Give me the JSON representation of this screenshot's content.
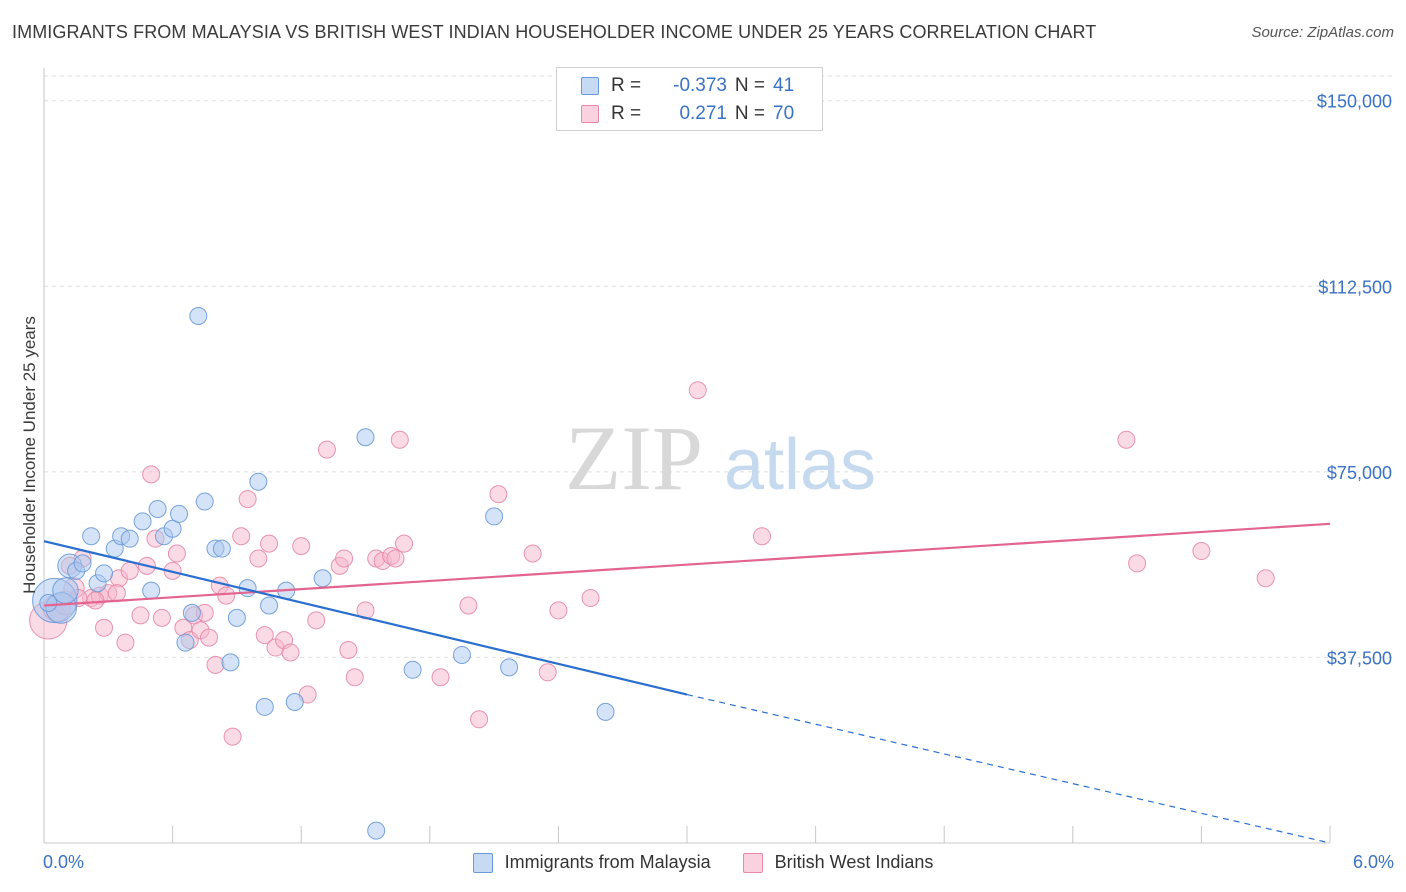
{
  "header": {
    "title": "IMMIGRANTS FROM MALAYSIA VS BRITISH WEST INDIAN HOUSEHOLDER INCOME UNDER 25 YEARS CORRELATION CHART",
    "source": "Source: ZipAtlas.com"
  },
  "legend": {
    "rows": [
      {
        "r_label": "R =",
        "r_value": "-0.373",
        "n_label": "N =",
        "n_value": "41",
        "color": "#a9c8ef"
      },
      {
        "r_label": "R =",
        "r_value": "0.271",
        "n_label": "N =",
        "n_value": "70",
        "color": "#f5b6cb"
      }
    ]
  },
  "bottom_legend": {
    "series1": "Immigrants from Malaysia",
    "series2": "British West Indians"
  },
  "watermark": {
    "zip": "ZIP",
    "atlas": "atlas"
  },
  "colors": {
    "blue_fill": "#a9c8ef",
    "blue_stroke": "#6a9ad8",
    "blue_line": "#2a6fd0",
    "pink_fill": "#f5b6cb",
    "pink_stroke": "#e58aa8",
    "pink_line": "#e2648f",
    "axis_text": "#3a72c4",
    "grid": "#dddddd"
  },
  "chart_data": {
    "type": "scatter",
    "title": "IMMIGRANTS FROM MALAYSIA VS BRITISH WEST INDIAN HOUSEHOLDER INCOME UNDER 25 YEARS CORRELATION CHART",
    "xlabel": "",
    "ylabel": "Householder Income Under 25 years",
    "xlim": [
      0,
      6
    ],
    "ylim": [
      0,
      155000
    ],
    "x_tick_labels": [
      "0.0%",
      "6.0%"
    ],
    "y_ticks": [
      37500,
      75000,
      112500,
      150000
    ],
    "y_tick_labels": [
      "$37,500",
      "$75,000",
      "$112,500",
      "$150,000"
    ],
    "grid": true,
    "legend_position": "top-center",
    "series": [
      {
        "name": "Immigrants from Malaysia",
        "R": -0.373,
        "N": 41,
        "trend": {
          "x0": 0.0,
          "y0": 61000,
          "x1": 3.0,
          "y1": 30000,
          "dashed_to_x": 6.0,
          "dashed_to_y": 0
        },
        "points": [
          [
            0.05,
            49000,
            2.6
          ],
          [
            0.08,
            47500,
            1.8
          ],
          [
            0.1,
            51000,
            1.5
          ],
          [
            0.12,
            56000,
            1.4
          ],
          [
            0.15,
            55000,
            1.0
          ],
          [
            0.18,
            56500,
            1.0
          ],
          [
            0.22,
            62000,
            1.0
          ],
          [
            0.25,
            52500,
            1.0
          ],
          [
            0.28,
            54500,
            1.0
          ],
          [
            0.33,
            59500,
            1.0
          ],
          [
            0.36,
            62000,
            1.0
          ],
          [
            0.4,
            61500,
            1.0
          ],
          [
            0.46,
            65000,
            1.0
          ],
          [
            0.5,
            51000,
            1.0
          ],
          [
            0.53,
            67500,
            1.0
          ],
          [
            0.56,
            62000,
            1.0
          ],
          [
            0.6,
            63500,
            1.0
          ],
          [
            0.63,
            66500,
            1.0
          ],
          [
            0.66,
            40500,
            1.0
          ],
          [
            0.69,
            46500,
            1.0
          ],
          [
            0.72,
            106500,
            1.0
          ],
          [
            0.75,
            69000,
            1.0
          ],
          [
            0.8,
            59500,
            1.0
          ],
          [
            0.83,
            59500,
            1.0
          ],
          [
            0.87,
            36500,
            1.0
          ],
          [
            0.9,
            45500,
            1.0
          ],
          [
            0.95,
            51500,
            1.0
          ],
          [
            1.0,
            73000,
            1.0
          ],
          [
            1.03,
            27500,
            1.0
          ],
          [
            1.05,
            48000,
            1.0
          ],
          [
            1.13,
            51000,
            1.0
          ],
          [
            1.17,
            28500,
            1.0
          ],
          [
            1.3,
            53500,
            1.0
          ],
          [
            1.5,
            82000,
            1.0
          ],
          [
            1.55,
            2500,
            1.0
          ],
          [
            1.72,
            35000,
            1.0
          ],
          [
            1.95,
            38000,
            1.0
          ],
          [
            2.1,
            66000,
            1.0
          ],
          [
            2.17,
            35500,
            1.0
          ],
          [
            2.62,
            26500,
            1.0
          ],
          [
            0.02,
            48500,
            1.0
          ]
        ]
      },
      {
        "name": "British West Indians",
        "R": 0.271,
        "N": 70,
        "trend": {
          "x0": 0.0,
          "y0": 48000,
          "x1": 6.0,
          "y1": 64500
        },
        "points": [
          [
            0.02,
            45000,
            2.2
          ],
          [
            0.06,
            47500,
            1.6
          ],
          [
            0.1,
            48500,
            1.4
          ],
          [
            0.14,
            51500,
            1.2
          ],
          [
            0.18,
            57500,
            1.0
          ],
          [
            0.22,
            49500,
            1.0
          ],
          [
            0.26,
            50000,
            1.0
          ],
          [
            0.28,
            43500,
            1.0
          ],
          [
            0.3,
            50500,
            1.0
          ],
          [
            0.35,
            53500,
            1.0
          ],
          [
            0.38,
            40500,
            1.0
          ],
          [
            0.4,
            55000,
            1.0
          ],
          [
            0.45,
            46000,
            1.0
          ],
          [
            0.48,
            56000,
            1.0
          ],
          [
            0.5,
            74500,
            1.0
          ],
          [
            0.52,
            61500,
            1.0
          ],
          [
            0.55,
            45500,
            1.0
          ],
          [
            0.6,
            55000,
            1.0
          ],
          [
            0.62,
            58500,
            1.0
          ],
          [
            0.65,
            43500,
            1.0
          ],
          [
            0.68,
            41000,
            1.0
          ],
          [
            0.7,
            46000,
            1.0
          ],
          [
            0.73,
            43000,
            1.0
          ],
          [
            0.75,
            46500,
            1.0
          ],
          [
            0.77,
            41500,
            1.0
          ],
          [
            0.8,
            36000,
            1.0
          ],
          [
            0.82,
            52000,
            1.0
          ],
          [
            0.85,
            50000,
            1.0
          ],
          [
            0.88,
            21500,
            1.0
          ],
          [
            0.92,
            62000,
            1.0
          ],
          [
            0.95,
            69500,
            1.0
          ],
          [
            1.0,
            57500,
            1.0
          ],
          [
            1.03,
            42000,
            1.0
          ],
          [
            1.05,
            60500,
            1.0
          ],
          [
            1.08,
            39500,
            1.0
          ],
          [
            1.12,
            41000,
            1.0
          ],
          [
            1.15,
            38500,
            1.0
          ],
          [
            1.2,
            60000,
            1.0
          ],
          [
            1.23,
            30000,
            1.0
          ],
          [
            1.27,
            45000,
            1.0
          ],
          [
            1.32,
            79500,
            1.0
          ],
          [
            1.38,
            56000,
            1.0
          ],
          [
            1.4,
            57500,
            1.0
          ],
          [
            1.42,
            39000,
            1.0
          ],
          [
            1.45,
            33500,
            1.0
          ],
          [
            1.5,
            47000,
            1.0
          ],
          [
            1.55,
            57500,
            1.0
          ],
          [
            1.58,
            57000,
            1.0
          ],
          [
            1.62,
            58000,
            1.0
          ],
          [
            1.64,
            57500,
            1.0
          ],
          [
            1.66,
            81500,
            1.0
          ],
          [
            1.68,
            60500,
            1.0
          ],
          [
            1.85,
            33500,
            1.0
          ],
          [
            1.98,
            48000,
            1.0
          ],
          [
            2.03,
            25000,
            1.0
          ],
          [
            2.12,
            70500,
            1.0
          ],
          [
            2.28,
            58500,
            1.0
          ],
          [
            2.35,
            34500,
            1.0
          ],
          [
            2.4,
            47000,
            1.0
          ],
          [
            2.55,
            49500,
            1.0
          ],
          [
            3.05,
            91500,
            1.0
          ],
          [
            3.35,
            62000,
            1.0
          ],
          [
            5.05,
            81500,
            1.0
          ],
          [
            5.1,
            56500,
            1.0
          ],
          [
            5.4,
            59000,
            1.0
          ],
          [
            5.7,
            53500,
            1.0
          ],
          [
            0.12,
            56000,
            1.0
          ],
          [
            0.16,
            49500,
            1.0
          ],
          [
            0.24,
            49000,
            1.0
          ],
          [
            0.34,
            50500,
            1.0
          ]
        ]
      }
    ]
  }
}
